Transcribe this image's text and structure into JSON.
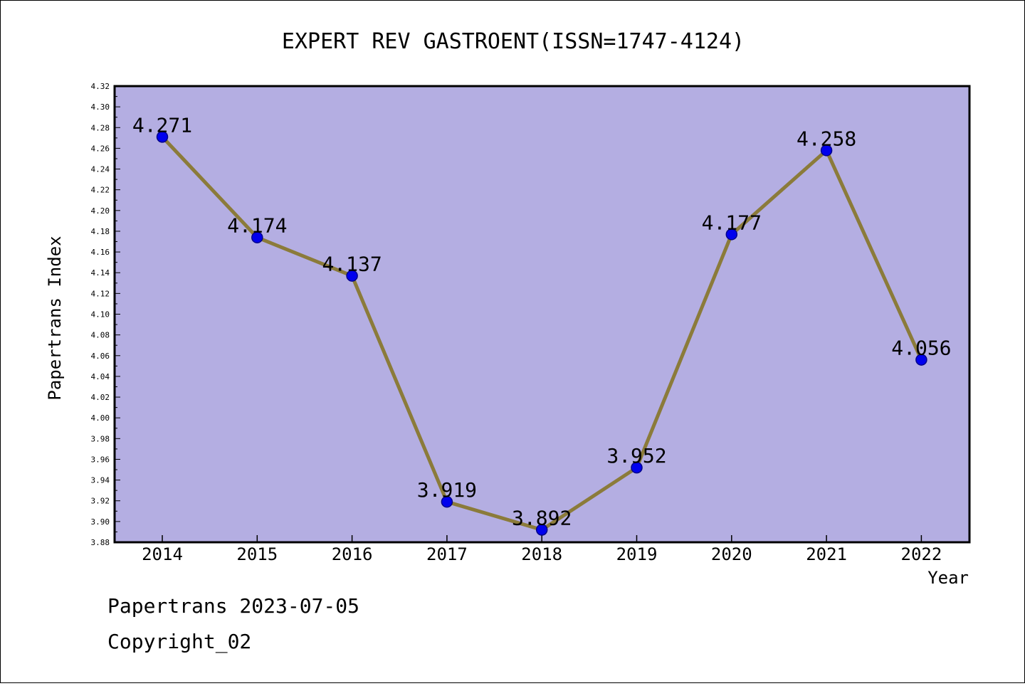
{
  "chart_data": {
    "type": "line",
    "title": "EXPERT REV GASTROENT(ISSN=1747-4124)",
    "xlabel": "Year",
    "ylabel": "Papertrans Index",
    "x": [
      "2014",
      "2015",
      "2016",
      "2017",
      "2018",
      "2019",
      "2020",
      "2021",
      "2022"
    ],
    "series": [
      {
        "values": [
          4.271,
          4.174,
          4.137,
          3.919,
          3.892,
          3.952,
          4.177,
          4.258,
          4.056
        ],
        "labels": [
          "4.271",
          "4.174",
          "4.137",
          "3.919",
          "3.892",
          "3.952",
          "4.177",
          "4.258",
          "4.056"
        ]
      }
    ],
    "ylim": [
      3.88,
      4.32
    ],
    "yticks": [
      "3.88",
      "3.90",
      "3.92",
      "3.94",
      "3.96",
      "3.98",
      "4.00",
      "4.02",
      "4.04",
      "4.06",
      "4.08",
      "4.10",
      "4.12",
      "4.14",
      "4.16",
      "4.18",
      "4.20",
      "4.22",
      "4.24",
      "4.26",
      "4.28",
      "4.30",
      "4.32"
    ],
    "grid": false,
    "colors": {
      "plot_background": "#b4aee2",
      "line": "#8b7b3a",
      "marker_fill": "#0000ee",
      "marker_edge": "#00008b"
    }
  },
  "footer": {
    "line1": "Papertrans 2023-07-05",
    "line2": "Copyright_02"
  }
}
